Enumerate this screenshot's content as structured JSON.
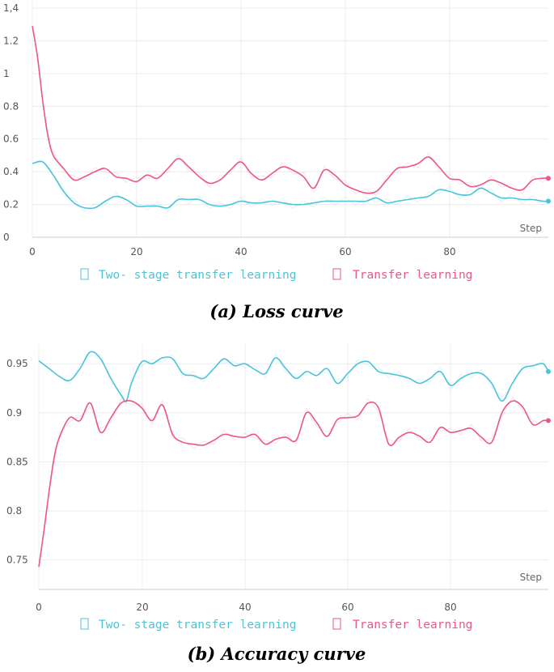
{
  "chart_data": [
    {
      "type": "line",
      "caption": "(a) Loss curve",
      "xlabel": "Step",
      "ylabel": "",
      "xlim": [
        0,
        99
      ],
      "ylim": [
        0,
        1.4
      ],
      "x_ticks": [
        "0",
        "20",
        "40",
        "60",
        "80"
      ],
      "y_ticks": [
        "0",
        "0.2",
        "0.4",
        "0.6",
        "0.8",
        "1",
        "1.2",
        "1,4"
      ],
      "grid": true,
      "legend_position": "bottom",
      "series": [
        {
          "name": "Two- stage transfer learning",
          "color": "#4cc3d9",
          "x": [
            0,
            2,
            4,
            6,
            8,
            10,
            12,
            14,
            16,
            18,
            20,
            22,
            24,
            26,
            28,
            30,
            32,
            34,
            36,
            38,
            40,
            42,
            44,
            46,
            48,
            50,
            52,
            54,
            56,
            58,
            60,
            62,
            64,
            66,
            68,
            70,
            72,
            74,
            76,
            78,
            80,
            82,
            84,
            86,
            88,
            90,
            92,
            94,
            96,
            98,
            99
          ],
          "values": [
            0.45,
            0.46,
            0.38,
            0.28,
            0.21,
            0.18,
            0.18,
            0.22,
            0.25,
            0.23,
            0.19,
            0.19,
            0.19,
            0.18,
            0.23,
            0.23,
            0.23,
            0.2,
            0.19,
            0.2,
            0.22,
            0.21,
            0.21,
            0.22,
            0.21,
            0.2,
            0.2,
            0.21,
            0.22,
            0.22,
            0.22,
            0.22,
            0.22,
            0.24,
            0.21,
            0.22,
            0.23,
            0.24,
            0.25,
            0.29,
            0.28,
            0.26,
            0.26,
            0.3,
            0.27,
            0.24,
            0.24,
            0.23,
            0.23,
            0.22,
            0.22
          ]
        },
        {
          "name": "Transfer learning",
          "color": "#e8588a",
          "x": [
            0,
            1,
            2,
            3,
            4,
            6,
            8,
            10,
            12,
            14,
            16,
            18,
            20,
            22,
            24,
            26,
            28,
            30,
            32,
            34,
            36,
            38,
            40,
            42,
            44,
            46,
            48,
            50,
            52,
            54,
            56,
            58,
            60,
            62,
            64,
            66,
            68,
            70,
            72,
            74,
            76,
            78,
            80,
            82,
            84,
            86,
            88,
            90,
            92,
            94,
            96,
            98,
            99
          ],
          "values": [
            1.29,
            1.1,
            0.83,
            0.62,
            0.5,
            0.42,
            0.35,
            0.37,
            0.4,
            0.42,
            0.37,
            0.36,
            0.34,
            0.38,
            0.36,
            0.42,
            0.48,
            0.43,
            0.37,
            0.33,
            0.35,
            0.41,
            0.46,
            0.39,
            0.35,
            0.39,
            0.43,
            0.41,
            0.37,
            0.3,
            0.41,
            0.38,
            0.32,
            0.29,
            0.27,
            0.28,
            0.35,
            0.42,
            0.43,
            0.45,
            0.49,
            0.43,
            0.36,
            0.35,
            0.31,
            0.32,
            0.35,
            0.33,
            0.3,
            0.29,
            0.35,
            0.36,
            0.36
          ]
        }
      ]
    },
    {
      "type": "line",
      "caption": "(b) Accuracy curve",
      "xlabel": "Step",
      "ylabel": "",
      "xlim": [
        0,
        99
      ],
      "ylim": [
        0.72,
        0.97
      ],
      "x_ticks": [
        "0",
        "20",
        "40",
        "60",
        "80"
      ],
      "y_ticks": [
        "0.75",
        "0.8",
        "0.85",
        "0.9",
        "0.95"
      ],
      "grid": true,
      "legend_position": "bottom",
      "series": [
        {
          "name": "Two- stage transfer learning",
          "color": "#4cc3d9",
          "x": [
            0,
            2,
            4,
            6,
            8,
            10,
            12,
            14,
            16,
            17,
            18,
            20,
            22,
            24,
            26,
            28,
            30,
            32,
            34,
            36,
            38,
            40,
            42,
            44,
            46,
            48,
            50,
            52,
            54,
            56,
            58,
            60,
            62,
            64,
            66,
            68,
            70,
            72,
            74,
            76,
            78,
            80,
            82,
            84,
            86,
            88,
            90,
            92,
            94,
            96,
            98,
            99
          ],
          "values": [
            0.953,
            0.945,
            0.937,
            0.933,
            0.945,
            0.962,
            0.955,
            0.935,
            0.918,
            0.912,
            0.93,
            0.952,
            0.95,
            0.956,
            0.955,
            0.94,
            0.938,
            0.935,
            0.945,
            0.955,
            0.948,
            0.95,
            0.944,
            0.94,
            0.956,
            0.945,
            0.935,
            0.942,
            0.938,
            0.945,
            0.93,
            0.94,
            0.95,
            0.952,
            0.942,
            0.94,
            0.938,
            0.935,
            0.93,
            0.935,
            0.942,
            0.928,
            0.935,
            0.94,
            0.94,
            0.93,
            0.912,
            0.93,
            0.945,
            0.948,
            0.95,
            0.942
          ]
        },
        {
          "name": "Transfer learning",
          "color": "#e8588a",
          "x": [
            0,
            1,
            2,
            3,
            4,
            6,
            8,
            10,
            12,
            14,
            16,
            18,
            20,
            22,
            24,
            26,
            28,
            30,
            32,
            34,
            36,
            38,
            40,
            42,
            44,
            46,
            48,
            50,
            52,
            54,
            56,
            58,
            60,
            62,
            64,
            66,
            68,
            70,
            72,
            74,
            76,
            78,
            80,
            82,
            84,
            86,
            88,
            90,
            92,
            94,
            96,
            98,
            99
          ],
          "values": [
            0.743,
            0.78,
            0.82,
            0.855,
            0.875,
            0.895,
            0.892,
            0.91,
            0.88,
            0.895,
            0.91,
            0.912,
            0.905,
            0.892,
            0.908,
            0.878,
            0.87,
            0.868,
            0.867,
            0.872,
            0.878,
            0.876,
            0.875,
            0.878,
            0.868,
            0.873,
            0.875,
            0.872,
            0.9,
            0.89,
            0.876,
            0.893,
            0.895,
            0.897,
            0.91,
            0.905,
            0.868,
            0.875,
            0.88,
            0.876,
            0.87,
            0.885,
            0.88,
            0.882,
            0.884,
            0.875,
            0.87,
            0.9,
            0.912,
            0.906,
            0.888,
            0.892,
            0.892
          ]
        }
      ]
    }
  ]
}
